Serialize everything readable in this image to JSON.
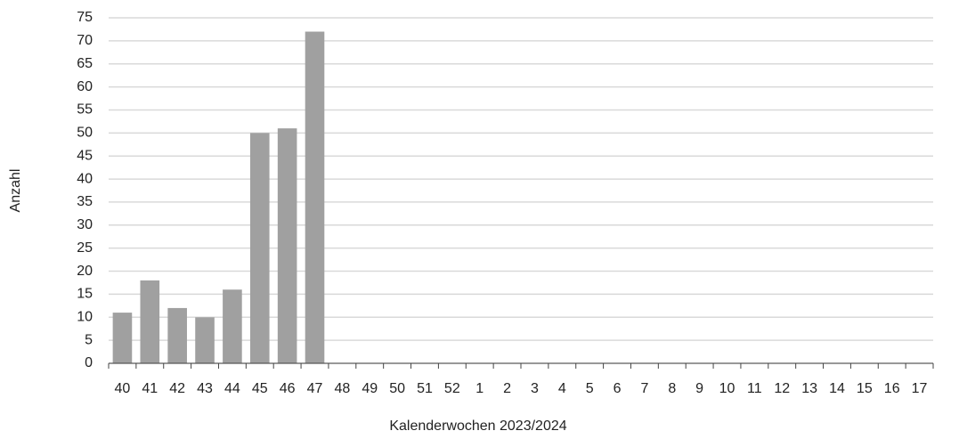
{
  "chart_data": {
    "type": "bar",
    "x_label": "Kalenderwochen 2023/2024",
    "y_label": "Anzahl",
    "categories": [
      "40",
      "41",
      "42",
      "43",
      "44",
      "45",
      "46",
      "47",
      "48",
      "49",
      "50",
      "51",
      "52",
      "1",
      "2",
      "3",
      "4",
      "5",
      "6",
      "7",
      "8",
      "9",
      "10",
      "11",
      "12",
      "13",
      "14",
      "15",
      "16",
      "17"
    ],
    "values": [
      11,
      18,
      12,
      10,
      16,
      50,
      51,
      72,
      null,
      null,
      null,
      null,
      null,
      null,
      null,
      null,
      null,
      null,
      null,
      null,
      null,
      null,
      null,
      null,
      null,
      null,
      null,
      null,
      null,
      null
    ],
    "color": "#a0a0a0",
    "ylim": [
      0,
      75
    ],
    "yticks": [
      0,
      5,
      10,
      15,
      20,
      25,
      30,
      35,
      40,
      45,
      50,
      55,
      60,
      65,
      70,
      75
    ],
    "grid": true
  }
}
